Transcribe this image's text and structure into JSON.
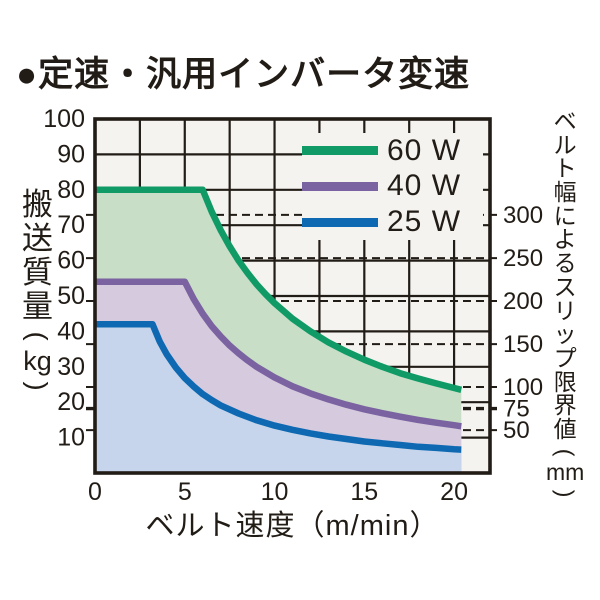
{
  "title": "●定速・汎用インバータ変速",
  "colors": {
    "ink": "#221c16",
    "plot_bg": "#f4f3f0",
    "page_bg": "#ffffff"
  },
  "left_axis": {
    "kanji": "搬送質量",
    "unit": "kg",
    "paren_open": "(",
    "paren_close": ")",
    "ticks": [
      10,
      20,
      30,
      40,
      50,
      60,
      70,
      80,
      90,
      100
    ]
  },
  "bottom_axis": {
    "label": "ベルト速度（m/min）",
    "ticks": [
      0,
      5,
      10,
      15,
      20
    ]
  },
  "right_axis": {
    "kanji": "ベルト幅によるスリップ限界値",
    "unit": "mm",
    "paren_open": "(",
    "paren_close": ")",
    "entries": [
      {
        "mm": "300",
        "kg": 72.9,
        "bold": false
      },
      {
        "mm": "250",
        "kg": 60.7,
        "bold": false
      },
      {
        "mm": "200",
        "kg": 48.6,
        "bold": false
      },
      {
        "mm": "150",
        "kg": 36.4,
        "bold": false
      },
      {
        "mm": "100",
        "kg": 24.3,
        "bold": false
      },
      {
        "mm": "75",
        "kg": 18.2,
        "bold": true
      },
      {
        "mm": "50",
        "kg": 12.1,
        "bold": false
      }
    ]
  },
  "chart_data": {
    "type": "line",
    "title": "定速・汎用インバータ変速",
    "xlabel": "ベルト速度（m/min）",
    "ylabel": "搬送質量(kg)",
    "ylabel_right": "ベルト幅によるスリップ限界値(mm)",
    "xlim": [
      0,
      22
    ],
    "ylim": [
      0,
      100
    ],
    "x_grid_step": 2.5,
    "y_grid_step": 10,
    "grid": true,
    "legend_position": "top-right",
    "series": [
      {
        "name": "60 W",
        "slug": "60w",
        "color": "#109a66",
        "fill": "#c8dec6",
        "points": [
          [
            0,
            80
          ],
          [
            6,
            80
          ],
          [
            6.5,
            73.8
          ],
          [
            7,
            68.6
          ],
          [
            7.5,
            64
          ],
          [
            8,
            60
          ],
          [
            8.5,
            56.5
          ],
          [
            9,
            53.3
          ],
          [
            9.5,
            50.5
          ],
          [
            10,
            48
          ],
          [
            11,
            43.6
          ],
          [
            12,
            40
          ],
          [
            13,
            36.9
          ],
          [
            14,
            34.3
          ],
          [
            15,
            32
          ],
          [
            16,
            30
          ],
          [
            17,
            28.2
          ],
          [
            18,
            26.7
          ],
          [
            19,
            25.3
          ],
          [
            20,
            24
          ],
          [
            20.4,
            23.5
          ]
        ]
      },
      {
        "name": "40 W",
        "slug": "40w",
        "color": "#7a63a0",
        "fill": "#d6cade",
        "points": [
          [
            0,
            54
          ],
          [
            5,
            54
          ],
          [
            5.5,
            49.1
          ],
          [
            6,
            45
          ],
          [
            6.5,
            41.5
          ],
          [
            7,
            38.6
          ],
          [
            7.5,
            36
          ],
          [
            8,
            33.8
          ],
          [
            8.5,
            31.8
          ],
          [
            9,
            30
          ],
          [
            10,
            27
          ],
          [
            11,
            24.5
          ],
          [
            12,
            22.5
          ],
          [
            13,
            20.8
          ],
          [
            14,
            19.3
          ],
          [
            15,
            18
          ],
          [
            16,
            16.9
          ],
          [
            17,
            15.9
          ],
          [
            18,
            15
          ],
          [
            19,
            14.2
          ],
          [
            20,
            13.5
          ],
          [
            20.4,
            13.2
          ]
        ]
      },
      {
        "name": "25 W",
        "slug": "25w",
        "color": "#0e69b2",
        "fill": "#c6d5eb",
        "points": [
          [
            0,
            42
          ],
          [
            3.2,
            42
          ],
          [
            3.6,
            37.2
          ],
          [
            4,
            33.5
          ],
          [
            4.5,
            29.8
          ],
          [
            5,
            26.8
          ],
          [
            5.5,
            24.4
          ],
          [
            6,
            22.3
          ],
          [
            6.5,
            20.6
          ],
          [
            7,
            19.1
          ],
          [
            8,
            16.8
          ],
          [
            9,
            14.9
          ],
          [
            10,
            13.4
          ],
          [
            11,
            12.2
          ],
          [
            12,
            11.2
          ],
          [
            13,
            10.3
          ],
          [
            14,
            9.6
          ],
          [
            15,
            8.9
          ],
          [
            16,
            8.4
          ],
          [
            17,
            7.9
          ],
          [
            18,
            7.4
          ],
          [
            19,
            7.1
          ],
          [
            20,
            6.7
          ],
          [
            20.4,
            6.6
          ]
        ]
      }
    ],
    "slip_limit_lines_mm": [
      300,
      250,
      200,
      150,
      100,
      75,
      50
    ]
  }
}
